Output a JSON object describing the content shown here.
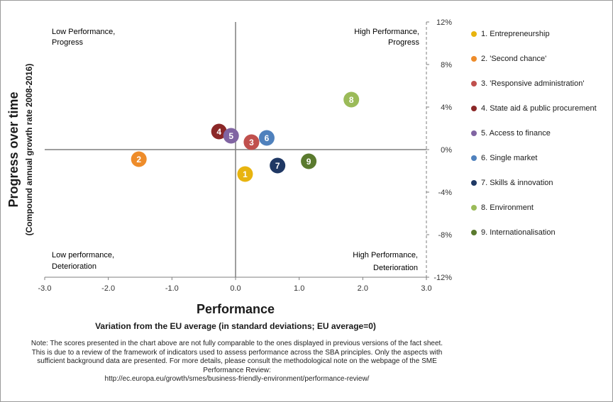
{
  "quadrants": {
    "top_left": [
      "Low Performance,",
      "Progress"
    ],
    "top_right": [
      "High Performance,",
      "Progress"
    ],
    "bottom_left": [
      "Low performance,",
      "Deterioration"
    ],
    "bottom_right": [
      "High Performance,",
      "Deterioration"
    ]
  },
  "colors": {
    "axis": "#7f7f7f",
    "divider": "#7f7f7f"
  },
  "chart_data": {
    "type": "scatter",
    "xlabel": "Performance",
    "xsubtitle": "Variation from the EU average (in standard deviations; EU average=0)",
    "ylabel": "Progress over time",
    "ylabel_sub": "(Compound annual growth rate 2008-2016)",
    "xlim": [
      -3.0,
      3.0
    ],
    "ylim": [
      -12,
      12
    ],
    "x_ticks": [
      "-3.0",
      "-2.0",
      "-1.0",
      "0.0",
      "1.0",
      "2.0",
      "3.0"
    ],
    "y_ticks": [
      "12%",
      "8%",
      "4%",
      "0%",
      "-4%",
      "-8%",
      "-12%"
    ],
    "y_tick_values": [
      12,
      8,
      4,
      0,
      -4,
      -8,
      -12
    ],
    "x_tick_values": [
      -3,
      -2,
      -1,
      0,
      1,
      2,
      3
    ],
    "legend_position": "right",
    "points": [
      {
        "id": "1",
        "name": "1. Entrepreneurship",
        "x": 0.15,
        "y": -2.3,
        "color": "#e8b40f"
      },
      {
        "id": "2",
        "name": "2. 'Second chance'",
        "x": -1.52,
        "y": -0.9,
        "color": "#ee8c2a"
      },
      {
        "id": "3",
        "name": "3. 'Responsive administration'",
        "x": 0.25,
        "y": 0.7,
        "color": "#c0504d"
      },
      {
        "id": "4",
        "name": "4. State aid & public procurement",
        "x": -0.26,
        "y": 1.7,
        "color": "#8b2727"
      },
      {
        "id": "5",
        "name": "5. Access to finance",
        "x": -0.07,
        "y": 1.3,
        "color": "#8064a2"
      },
      {
        "id": "6",
        "name": "6. Single market",
        "x": 0.49,
        "y": 1.1,
        "color": "#4f81bd"
      },
      {
        "id": "7",
        "name": "7. Skills & innovation",
        "x": 0.66,
        "y": -1.5,
        "color": "#1f3864"
      },
      {
        "id": "8",
        "name": "8. Environment",
        "x": 1.82,
        "y": 4.7,
        "color": "#9bbb59"
      },
      {
        "id": "9",
        "name": "9. Internationalisation",
        "x": 1.15,
        "y": -1.1,
        "color": "#5a7a2e"
      }
    ]
  },
  "note": {
    "lines": [
      "Note: The scores presented in the chart above are not fully comparable to the ones displayed in previous versions of the fact sheet.",
      "This is due to a review of the framework of indicators used to assess performance across the SBA principles. Only the aspects with",
      "sufficient  background data are presented. For more details, please consult the methodological  note on the webpage of the SME",
      "Performance  Review:"
    ],
    "url": "http://ec.europa.eu/growth/smes/business-friendly-environment/performance-review/"
  }
}
